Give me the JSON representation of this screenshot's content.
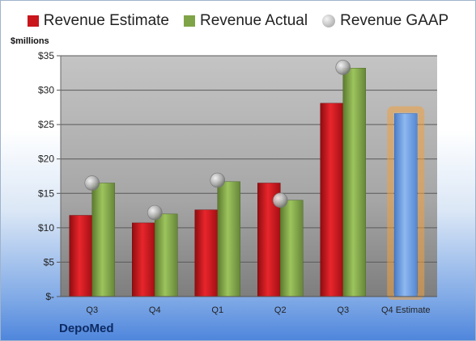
{
  "chart_data": {
    "type": "bar",
    "ylabel": "$millions",
    "categories": [
      "Q3",
      "Q4",
      "Q1",
      "Q2",
      "Q3",
      "Q4 Estimate"
    ],
    "ylim": [
      0,
      35
    ],
    "y_ticks": [
      {
        "value": 0,
        "label": "$-"
      },
      {
        "value": 5,
        "label": "$5"
      },
      {
        "value": 10,
        "label": "$10"
      },
      {
        "value": 15,
        "label": "$15"
      },
      {
        "value": 20,
        "label": "$20"
      },
      {
        "value": 25,
        "label": "$25"
      },
      {
        "value": 30,
        "label": "$30"
      },
      {
        "value": 35,
        "label": "$35"
      }
    ],
    "series": [
      {
        "name": "Revenue Estimate",
        "values": [
          11.8,
          10.7,
          12.6,
          16.5,
          28.1,
          null
        ],
        "color": "#c9151c"
      },
      {
        "name": "Revenue Actual",
        "values": [
          16.5,
          12.0,
          16.7,
          14.0,
          33.2,
          null
        ],
        "color": "#7fa447"
      },
      {
        "name": "Revenue GAAP",
        "type": "scatter",
        "values": [
          16.5,
          12.2,
          16.9,
          14.0,
          33.3,
          null
        ],
        "color": "#b5b5b5"
      },
      {
        "name": "Q4 Estimate",
        "values": [
          null,
          null,
          null,
          null,
          null,
          26.6
        ],
        "color": "#6f9de0",
        "glow": "#f0a040"
      }
    ],
    "grid": true,
    "legend_position": "top"
  },
  "brand": "DepoMed"
}
